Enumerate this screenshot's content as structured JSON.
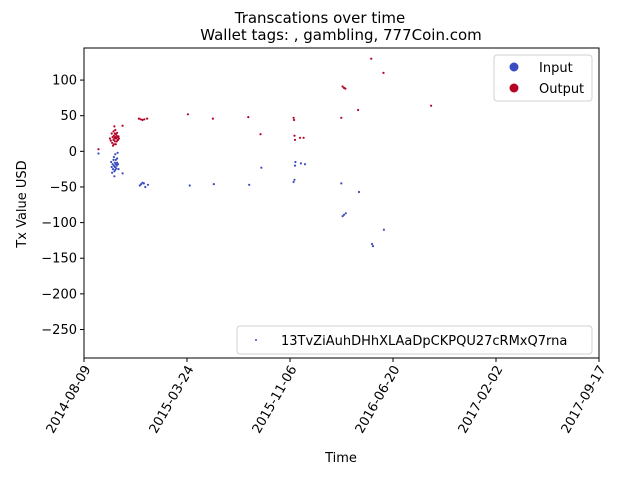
{
  "chart_data": {
    "type": "scatter",
    "title": "Transcations over time",
    "subtitle": "Wallet tags: , gambling, 777Coin.com",
    "xlabel": "Time",
    "ylabel": "Tx Value USD",
    "xlim": [
      "2014-08-09",
      "2017-09-17"
    ],
    "ylim": [
      -290,
      145
    ],
    "x_ticks": [
      "2014-08-09",
      "2015-03-24",
      "2015-11-06",
      "2016-06-20",
      "2017-02-02",
      "2017-09-17"
    ],
    "y_ticks": [
      100,
      50,
      0,
      -50,
      -100,
      -150,
      -200,
      -250
    ],
    "grid": false,
    "legend_top_right": {
      "placement": "top-right",
      "entries": [
        {
          "label": "Input",
          "color": "#3b4cc0"
        },
        {
          "label": "Output",
          "color": "#b40426"
        }
      ]
    },
    "legend_bottom_right": {
      "placement": "bottom-right",
      "entries": [
        {
          "label": "13TvZiAuhDHhXLAaDpCKPQU27cRMxQ7rna",
          "color": "#3b4cc0"
        }
      ]
    },
    "series": [
      {
        "name": "Input",
        "color": "#3b4cc0",
        "points": [
          [
            "2014-09-10",
            -3
          ],
          [
            "2014-10-08",
            -15
          ],
          [
            "2014-10-09",
            -22
          ],
          [
            "2014-10-10",
            -30
          ],
          [
            "2014-10-11",
            -18
          ],
          [
            "2014-10-12",
            -25
          ],
          [
            "2014-10-13",
            -12
          ],
          [
            "2014-10-14",
            -20
          ],
          [
            "2014-10-14",
            -8
          ],
          [
            "2014-10-15",
            -28
          ],
          [
            "2014-10-15",
            -35
          ],
          [
            "2014-10-16",
            -16
          ],
          [
            "2014-10-16",
            -22
          ],
          [
            "2014-10-17",
            -4
          ],
          [
            "2014-10-17",
            -26
          ],
          [
            "2014-10-18",
            -18
          ],
          [
            "2014-10-18",
            -12
          ],
          [
            "2014-10-19",
            -24
          ],
          [
            "2014-10-20",
            -20
          ],
          [
            "2014-10-21",
            -16
          ],
          [
            "2014-10-21",
            -10
          ],
          [
            "2014-10-22",
            -2
          ],
          [
            "2014-10-23",
            -18
          ],
          [
            "2014-10-24",
            -25
          ],
          [
            "2014-11-02",
            -31
          ],
          [
            "2014-12-10",
            -48
          ],
          [
            "2014-12-13",
            -46
          ],
          [
            "2014-12-16",
            -44
          ],
          [
            "2014-12-19",
            -45
          ],
          [
            "2014-12-22",
            -50
          ],
          [
            "2014-12-28",
            -47
          ],
          [
            "2015-03-30",
            -48
          ],
          [
            "2015-05-22",
            -46
          ],
          [
            "2015-08-08",
            -47
          ],
          [
            "2015-09-04",
            -23
          ],
          [
            "2015-11-14",
            -43
          ],
          [
            "2015-11-16",
            -40
          ],
          [
            "2015-11-17",
            -20
          ],
          [
            "2015-11-18",
            -15
          ],
          [
            "2015-11-30",
            -17
          ],
          [
            "2015-12-09",
            -18
          ],
          [
            "2016-02-27",
            -45
          ],
          [
            "2016-03-01",
            -91
          ],
          [
            "2016-03-04",
            -89
          ],
          [
            "2016-03-08",
            -87
          ],
          [
            "2016-04-06",
            -57
          ],
          [
            "2016-05-05",
            -130
          ],
          [
            "2016-05-07",
            -133
          ],
          [
            "2016-05-31",
            -110
          ]
        ]
      },
      {
        "name": "Output",
        "color": "#b40426",
        "points": [
          [
            "2014-09-10",
            3
          ],
          [
            "2014-10-05",
            18
          ],
          [
            "2014-10-07",
            15
          ],
          [
            "2014-10-09",
            25
          ],
          [
            "2014-10-10",
            12
          ],
          [
            "2014-10-11",
            20
          ],
          [
            "2014-10-12",
            8
          ],
          [
            "2014-10-13",
            28
          ],
          [
            "2014-10-13",
            16
          ],
          [
            "2014-10-14",
            22
          ],
          [
            "2014-10-14",
            10
          ],
          [
            "2014-10-15",
            35
          ],
          [
            "2014-10-15",
            18
          ],
          [
            "2014-10-16",
            25
          ],
          [
            "2014-10-16",
            14
          ],
          [
            "2014-10-17",
            30
          ],
          [
            "2014-10-17",
            20
          ],
          [
            "2014-10-18",
            10
          ],
          [
            "2014-10-18",
            24
          ],
          [
            "2014-10-19",
            18
          ],
          [
            "2014-10-20",
            22
          ],
          [
            "2014-10-20",
            14
          ],
          [
            "2014-10-21",
            26
          ],
          [
            "2014-10-22",
            20
          ],
          [
            "2014-10-23",
            16
          ],
          [
            "2014-10-24",
            21
          ],
          [
            "2014-10-25",
            18
          ],
          [
            "2014-11-02",
            36
          ],
          [
            "2014-12-08",
            46
          ],
          [
            "2014-12-12",
            45
          ],
          [
            "2014-12-16",
            44
          ],
          [
            "2014-12-20",
            45
          ],
          [
            "2014-12-26",
            46
          ],
          [
            "2015-03-26",
            52
          ],
          [
            "2015-05-20",
            46
          ],
          [
            "2015-08-06",
            48
          ],
          [
            "2015-09-02",
            24
          ],
          [
            "2015-11-14",
            47
          ],
          [
            "2015-11-15",
            44
          ],
          [
            "2015-11-16",
            22
          ],
          [
            "2015-11-17",
            16
          ],
          [
            "2015-11-28",
            19
          ],
          [
            "2015-12-06",
            19
          ],
          [
            "2016-02-27",
            47
          ],
          [
            "2016-03-01",
            91
          ],
          [
            "2016-03-04",
            89
          ],
          [
            "2016-03-07",
            88
          ],
          [
            "2016-04-04",
            58
          ],
          [
            "2016-05-03",
            130
          ],
          [
            "2016-05-30",
            110
          ],
          [
            "2016-09-12",
            64
          ]
        ]
      }
    ]
  }
}
